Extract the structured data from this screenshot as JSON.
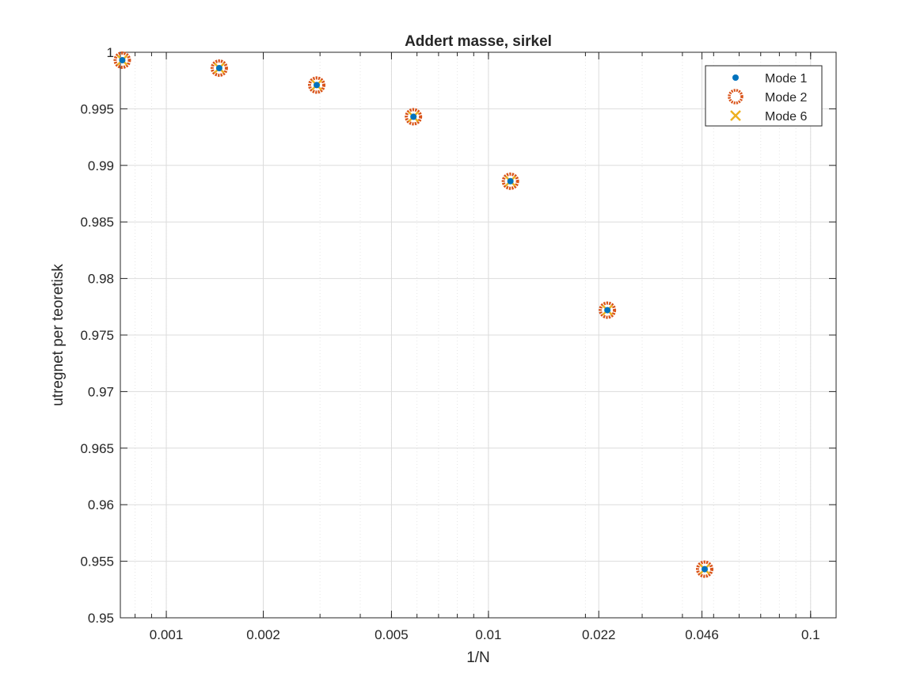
{
  "chart_data": {
    "type": "scatter",
    "title": "Addert masse, sirkel",
    "xlabel": "1/N",
    "ylabel": "utregnet per teoretisk",
    "xscale": "log",
    "xlim": [
      0.00072,
      0.12
    ],
    "ylim": [
      0.95,
      1.0
    ],
    "xticks": [
      0.001,
      0.002,
      0.005,
      0.01,
      0.022,
      0.046,
      0.1
    ],
    "xtick_labels": [
      "0.001",
      "0.002",
      "0.005",
      "0.01",
      "0.022",
      "0.046",
      "0.1"
    ],
    "yticks": [
      0.95,
      0.955,
      0.96,
      0.965,
      0.97,
      0.975,
      0.98,
      0.985,
      0.99,
      0.995,
      1.0
    ],
    "ytick_labels": [
      "0.95",
      "0.955",
      "0.96",
      "0.965",
      "0.97",
      "0.975",
      "0.98",
      "0.985",
      "0.99",
      "0.995",
      "1"
    ],
    "grid": true,
    "legend_position": "top-right",
    "x": [
      0.00073,
      0.00146,
      0.00293,
      0.00585,
      0.0117,
      0.0234,
      0.0469
    ],
    "series": [
      {
        "name": "Mode 1",
        "marker": "dot",
        "color": "#0072BD",
        "values": [
          0.9993,
          0.9986,
          0.9971,
          0.9943,
          0.9886,
          0.9772,
          0.9543
        ]
      },
      {
        "name": "Mode 2",
        "marker": "circle",
        "color": "#D95319",
        "values": [
          0.9993,
          0.9986,
          0.9971,
          0.9943,
          0.9886,
          0.9772,
          0.9543
        ]
      },
      {
        "name": "Mode 6",
        "marker": "x",
        "color": "#EDB120",
        "values": [
          0.9993,
          0.9986,
          0.9971,
          0.9943,
          0.9886,
          0.9772,
          0.9543
        ]
      }
    ]
  }
}
